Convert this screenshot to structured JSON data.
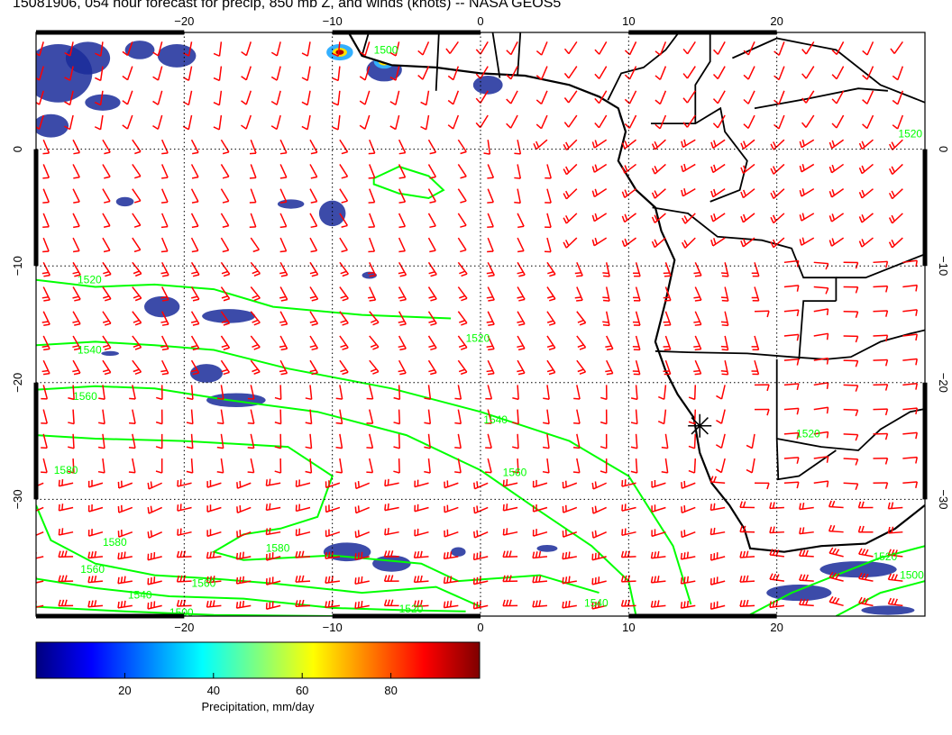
{
  "title": "15081906, 054 hour forecast for precip, 850 mb Z, and winds (knots) -- NASA GEOS5",
  "map": {
    "lon_range": [
      -30,
      30
    ],
    "lat_range": [
      -40,
      10
    ],
    "lon_ticks": [
      {
        "value": -20,
        "label": "−20"
      },
      {
        "value": -10,
        "label": "−10"
      },
      {
        "value": 0,
        "label": "0"
      },
      {
        "value": 10,
        "label": "10"
      },
      {
        "value": 20,
        "label": "20"
      }
    ],
    "lat_ticks": [
      {
        "value": 0,
        "label": "0"
      },
      {
        "value": -10,
        "label": "−10"
      },
      {
        "value": -20,
        "label": "−20"
      },
      {
        "value": -30,
        "label": "−30"
      }
    ],
    "colors": {
      "wind_barbs": "#ff0000",
      "contours": "#00ff00",
      "coastlines": "#000000",
      "grid": "#000000"
    },
    "contour_labels": [
      {
        "text": "1520",
        "lon": -27.2,
        "lat": -11.5
      },
      {
        "text": "1540",
        "lon": -27.2,
        "lat": -17.5
      },
      {
        "text": "1560",
        "lon": -27.5,
        "lat": -21.5
      },
      {
        "text": "1580",
        "lon": -28.8,
        "lat": -27.8
      },
      {
        "text": "1520",
        "lon": -1,
        "lat": -16.5
      },
      {
        "text": "1540",
        "lon": 0.2,
        "lat": -23.5
      },
      {
        "text": "1560",
        "lon": 1.5,
        "lat": -28
      },
      {
        "text": "1580",
        "lon": -25.5,
        "lat": -34
      },
      {
        "text": "1560",
        "lon": -27,
        "lat": -36.3
      },
      {
        "text": "1580",
        "lon": -14.5,
        "lat": -34.5
      },
      {
        "text": "1560",
        "lon": -19.5,
        "lat": -37.5
      },
      {
        "text": "1540",
        "lon": -23.8,
        "lat": -38.5
      },
      {
        "text": "1500",
        "lon": -21,
        "lat": -40
      },
      {
        "text": "1520",
        "lon": -5.5,
        "lat": -39.7
      },
      {
        "text": "1540",
        "lon": 7,
        "lat": -39.2
      },
      {
        "text": "1520",
        "lon": 26.5,
        "lat": -35.2
      },
      {
        "text": "1500",
        "lon": 28.3,
        "lat": -36.8
      },
      {
        "text": "1520",
        "lon": 28.2,
        "lat": 1
      },
      {
        "text": "1520",
        "lon": 21.3,
        "lat": -24.7
      },
      {
        "text": "1500",
        "lon": -7.2,
        "lat": 8.2
      }
    ],
    "marker": {
      "lon": 14.8,
      "lat": -23.7,
      "symbol": "asterisk"
    }
  },
  "colorbar": {
    "label": "Precipitation, mm/day",
    "range": [
      0,
      100
    ],
    "ticks": [
      {
        "value": 20,
        "label": "20"
      },
      {
        "value": 40,
        "label": "40"
      },
      {
        "value": 60,
        "label": "60"
      },
      {
        "value": 80,
        "label": "80"
      }
    ],
    "colors": [
      "#00007f",
      "#0000ff",
      "#007fff",
      "#00ffff",
      "#7fff7f",
      "#ffff00",
      "#ff7f00",
      "#ff0000",
      "#7f0000"
    ]
  }
}
